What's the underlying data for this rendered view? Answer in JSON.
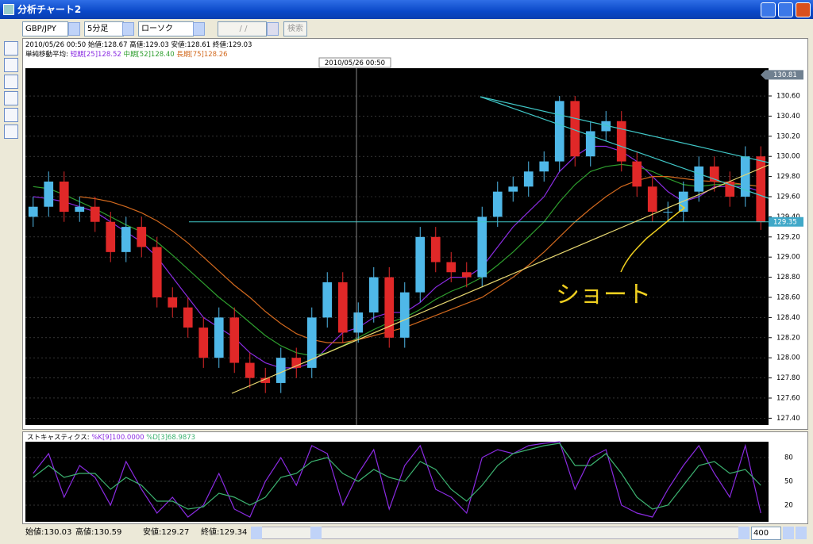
{
  "window": {
    "title": "分析チャート2"
  },
  "toolbar": {
    "symbol": "GBP/JPY",
    "timeframe": "5分足",
    "chart_kind": "ローソク(BID)",
    "date": "/ /",
    "search": "検索"
  },
  "info": {
    "bar": "2010/05/26 00:50 始値:128.67 高値:129.03 安値:128.61 終値:129.03",
    "ma_label": "単純移動平均:",
    "ma_short": "短期[25]128.52",
    "ma_mid": "中期[52]128.40",
    "ma_long": "長期[75]128.26"
  },
  "chart_data": [
    {
      "type": "candlestick",
      "crosshair_label": "2010/05/26 00:50",
      "annotation": "ショート",
      "up_color": "#4fb8e8",
      "down_color": "#e02828",
      "open": [
        129.4,
        129.5,
        129.75,
        129.45,
        129.5,
        129.35,
        129.05,
        129.3,
        129.1,
        128.6,
        128.5,
        128.3,
        128.0,
        128.4,
        127.95,
        127.8,
        127.75,
        128.0,
        127.9,
        128.4,
        128.75,
        128.25,
        128.45,
        128.8,
        128.2,
        128.65,
        129.2,
        128.95,
        128.85,
        128.8,
        129.4,
        129.65,
        129.7,
        129.85,
        129.95,
        130.55,
        130.0,
        130.25,
        130.35,
        129.95,
        129.7,
        129.45,
        129.45,
        129.65,
        129.9,
        129.75,
        129.6,
        130.0
      ],
      "high": [
        129.6,
        129.85,
        129.85,
        129.6,
        129.6,
        129.45,
        129.4,
        129.4,
        129.2,
        128.7,
        128.6,
        128.4,
        128.5,
        128.5,
        128.05,
        127.9,
        128.1,
        128.1,
        128.5,
        128.85,
        128.85,
        128.55,
        128.9,
        128.9,
        128.75,
        129.3,
        129.3,
        129.05,
        128.95,
        129.5,
        129.75,
        129.8,
        129.95,
        130.05,
        130.6,
        130.6,
        130.35,
        130.45,
        130.45,
        130.05,
        129.8,
        129.55,
        129.75,
        130.0,
        130.0,
        129.85,
        130.1,
        130.1
      ],
      "low": [
        129.3,
        129.4,
        129.35,
        129.35,
        129.25,
        128.95,
        128.95,
        129.0,
        128.5,
        128.4,
        128.2,
        127.9,
        127.9,
        127.85,
        127.7,
        127.65,
        127.65,
        127.8,
        127.8,
        128.3,
        128.15,
        128.15,
        128.35,
        128.1,
        128.1,
        128.55,
        128.85,
        128.75,
        128.7,
        128.7,
        129.3,
        129.55,
        129.6,
        129.75,
        129.85,
        129.9,
        129.9,
        130.15,
        129.85,
        129.6,
        129.35,
        129.35,
        129.35,
        129.55,
        129.65,
        129.5,
        129.5,
        129.27
      ],
      "close": [
        129.5,
        129.75,
        129.45,
        129.5,
        129.35,
        129.05,
        129.3,
        129.1,
        128.6,
        128.5,
        128.3,
        128.0,
        128.4,
        127.95,
        127.8,
        127.75,
        128.0,
        127.9,
        128.4,
        128.75,
        128.25,
        128.45,
        128.8,
        128.2,
        128.65,
        129.2,
        128.95,
        128.85,
        128.8,
        129.4,
        129.65,
        129.7,
        129.85,
        129.95,
        130.55,
        130.0,
        130.25,
        130.35,
        129.95,
        129.7,
        129.45,
        129.45,
        129.65,
        129.9,
        129.75,
        129.6,
        130.0,
        129.35
      ],
      "lines": [
        {
          "color": "#8a2be2",
          "values": [
            129.6,
            129.58,
            129.55,
            129.5,
            129.45,
            129.35,
            129.25,
            129.15,
            129.0,
            128.8,
            128.6,
            128.4,
            128.3,
            128.2,
            128.05,
            127.95,
            127.9,
            127.9,
            127.95,
            128.1,
            128.25,
            128.3,
            128.4,
            128.45,
            128.45,
            128.55,
            128.7,
            128.8,
            128.8,
            128.9,
            129.1,
            129.3,
            129.45,
            129.6,
            129.85,
            130.0,
            130.1,
            130.1,
            130.05,
            129.95,
            129.8,
            129.65,
            129.55,
            129.6,
            129.7,
            129.7,
            129.7,
            129.65
          ]
        },
        {
          "color": "#2e9e2e",
          "values": [
            129.7,
            129.68,
            129.62,
            129.55,
            129.48,
            129.4,
            129.32,
            129.25,
            129.15,
            129.02,
            128.88,
            128.74,
            128.6,
            128.48,
            128.35,
            128.22,
            128.12,
            128.05,
            128.02,
            128.05,
            128.12,
            128.2,
            128.28,
            128.35,
            128.4,
            128.48,
            128.58,
            128.66,
            128.72,
            128.8,
            128.92,
            129.05,
            129.2,
            129.35,
            129.55,
            129.72,
            129.85,
            129.9,
            129.92,
            129.9,
            129.85,
            129.78,
            129.72,
            129.7,
            129.72,
            129.72,
            129.72,
            129.7
          ]
        },
        {
          "color": "#d2691e",
          "values": [
            null,
            null,
            null,
            129.6,
            129.58,
            129.55,
            129.5,
            129.44,
            129.36,
            129.26,
            129.14,
            129.0,
            128.86,
            128.72,
            128.6,
            128.46,
            128.34,
            128.24,
            128.18,
            128.15,
            128.15,
            128.18,
            128.22,
            128.26,
            128.3,
            128.36,
            128.42,
            128.48,
            128.54,
            128.6,
            128.7,
            128.8,
            128.92,
            129.05,
            129.2,
            129.35,
            129.48,
            129.6,
            129.7,
            129.76,
            129.8,
            129.8,
            129.78,
            129.76,
            129.75,
            129.74,
            129.72,
            129.7
          ]
        }
      ],
      "ylim": [
        127.34,
        130.86
      ],
      "yticks": [
        {
          "value": 127.4,
          "label": "127.40"
        },
        {
          "value": 127.6,
          "label": "127.60"
        },
        {
          "value": 127.8,
          "label": "127.80"
        },
        {
          "value": 128,
          "label": "128.00"
        },
        {
          "value": 128.2,
          "label": "128.20"
        },
        {
          "value": 128.4,
          "label": "128.40"
        },
        {
          "value": 128.6,
          "label": "128.60"
        },
        {
          "value": 128.8,
          "label": "128.80"
        },
        {
          "value": 129,
          "label": "129.00"
        },
        {
          "value": 129.2,
          "label": "129.20"
        },
        {
          "value": 129.4,
          "label": "129.40"
        },
        {
          "value": 129.6,
          "label": "129.60"
        },
        {
          "value": 129.8,
          "label": "129.80"
        },
        {
          "value": 130,
          "label": "130.00"
        },
        {
          "value": 130.2,
          "label": "130.20"
        },
        {
          "value": 130.4,
          "label": "130.40"
        },
        {
          "value": 130.6,
          "label": "130.60"
        }
      ],
      "grid": true,
      "top_price": 130.81,
      "current_price": 129.35
    },
    {
      "type": "line",
      "title": "ストキャスティクス:",
      "series": [
        {
          "name": "%K[9]100.0000",
          "color": "#8a2be2",
          "values": [
            60,
            85,
            30,
            70,
            55,
            20,
            75,
            40,
            10,
            30,
            5,
            20,
            60,
            15,
            5,
            50,
            80,
            45,
            95,
            85,
            20,
            60,
            90,
            15,
            70,
            95,
            40,
            30,
            10,
            80,
            90,
            85,
            95,
            98,
            100,
            40,
            80,
            90,
            20,
            10,
            5,
            40,
            70,
            95,
            60,
            30,
            95,
            10
          ]
        },
        {
          "name": "%D[3]68.9873",
          "color": "#3cb371",
          "values": [
            55,
            70,
            55,
            60,
            60,
            40,
            55,
            45,
            25,
            25,
            15,
            18,
            35,
            30,
            20,
            30,
            55,
            60,
            75,
            80,
            60,
            50,
            65,
            55,
            50,
            75,
            65,
            40,
            25,
            45,
            70,
            85,
            90,
            95,
            98,
            70,
            70,
            85,
            60,
            30,
            15,
            20,
            45,
            70,
            75,
            60,
            65,
            45
          ]
        }
      ],
      "ylim": [
        0,
        100
      ],
      "yticks": [
        20,
        50,
        80
      ],
      "grid": true
    }
  ],
  "status": {
    "open": "始値:130.03",
    "high": "高値:130.59",
    "low": "安値:129.27",
    "close": "終値:129.34",
    "count": 400
  }
}
